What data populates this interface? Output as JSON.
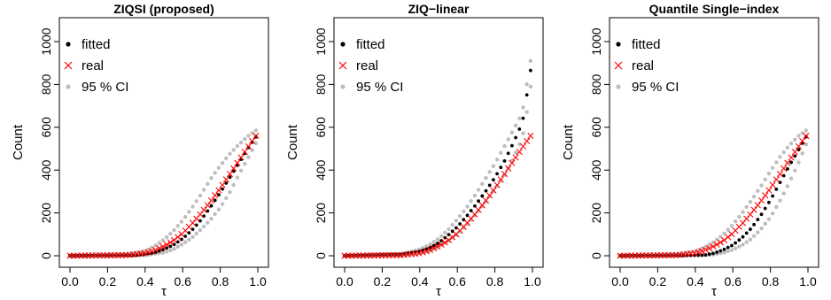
{
  "chart_data": [
    {
      "type": "scatter",
      "title": "ZIQSI (proposed)",
      "xlabel": "τ",
      "ylabel": "Count",
      "xlim": [
        0,
        1
      ],
      "ylim": [
        0,
        1000
      ],
      "xticks": [
        "0.0",
        "0.2",
        "0.4",
        "0.6",
        "0.8",
        "1.0"
      ],
      "yticks": [
        "0",
        "200",
        "400",
        "600",
        "800",
        "1000"
      ],
      "legend": {
        "position": "top-left",
        "entries": [
          {
            "label": "fitted",
            "marker": "dot",
            "color": "#000000"
          },
          {
            "label": "real",
            "marker": "x",
            "color": "#ff0000"
          },
          {
            "label": "95 % CI",
            "marker": "dot",
            "color": "#bebebe"
          }
        ]
      },
      "series": [
        {
          "name": "real",
          "x": [
            0.0,
            0.3,
            0.4,
            0.45,
            0.5,
            0.55,
            0.6,
            0.65,
            0.7,
            0.75,
            0.8,
            0.85,
            0.9,
            0.95,
            0.99
          ],
          "y": [
            0,
            3,
            12,
            25,
            45,
            70,
            105,
            150,
            200,
            255,
            315,
            380,
            445,
            510,
            560
          ]
        },
        {
          "name": "fitted",
          "x": [
            0.0,
            0.35,
            0.45,
            0.5,
            0.55,
            0.6,
            0.65,
            0.7,
            0.75,
            0.8,
            0.85,
            0.9,
            0.95,
            0.99
          ],
          "y": [
            0,
            3,
            15,
            30,
            50,
            80,
            120,
            170,
            230,
            295,
            365,
            435,
            505,
            555
          ]
        },
        {
          "name": "95 % CI upper",
          "x": [
            0.0,
            0.3,
            0.4,
            0.45,
            0.5,
            0.55,
            0.6,
            0.65,
            0.7,
            0.75,
            0.8,
            0.85,
            0.9,
            0.95,
            0.99
          ],
          "y": [
            0,
            5,
            22,
            45,
            75,
            115,
            165,
            225,
            290,
            360,
            420,
            475,
            520,
            560,
            585
          ]
        },
        {
          "name": "95 % CI lower",
          "x": [
            0.0,
            0.4,
            0.5,
            0.55,
            0.6,
            0.65,
            0.7,
            0.75,
            0.8,
            0.85,
            0.9,
            0.95,
            0.99
          ],
          "y": [
            0,
            2,
            15,
            30,
            55,
            85,
            125,
            170,
            225,
            295,
            380,
            460,
            525
          ]
        }
      ]
    },
    {
      "type": "scatter",
      "title": "ZIQ−linear",
      "xlabel": "τ",
      "ylabel": "Count",
      "xlim": [
        0,
        1
      ],
      "ylim": [
        0,
        1000
      ],
      "xticks": [
        "0.0",
        "0.2",
        "0.4",
        "0.6",
        "0.8",
        "1.0"
      ],
      "yticks": [
        "0",
        "200",
        "400",
        "600",
        "800",
        "1000"
      ],
      "legend": {
        "position": "top-left",
        "entries": [
          {
            "label": "fitted",
            "marker": "dot",
            "color": "#000000"
          },
          {
            "label": "real",
            "marker": "x",
            "color": "#ff0000"
          },
          {
            "label": "95 % CI",
            "marker": "dot",
            "color": "#bebebe"
          }
        ]
      },
      "series": [
        {
          "name": "real",
          "x": [
            0.0,
            0.3,
            0.4,
            0.45,
            0.5,
            0.55,
            0.6,
            0.65,
            0.7,
            0.75,
            0.8,
            0.85,
            0.9,
            0.95,
            0.99
          ],
          "y": [
            0,
            3,
            12,
            25,
            45,
            70,
            105,
            150,
            200,
            255,
            315,
            380,
            445,
            510,
            560
          ]
        },
        {
          "name": "fitted",
          "x": [
            0.0,
            0.3,
            0.4,
            0.45,
            0.5,
            0.55,
            0.6,
            0.65,
            0.7,
            0.75,
            0.8,
            0.85,
            0.9,
            0.93,
            0.95,
            0.97,
            0.99
          ],
          "y": [
            0,
            5,
            20,
            35,
            60,
            95,
            135,
            185,
            240,
            300,
            365,
            440,
            530,
            590,
            640,
            750,
            865
          ]
        },
        {
          "name": "95 % CI upper",
          "x": [
            0.0,
            0.3,
            0.4,
            0.45,
            0.5,
            0.55,
            0.6,
            0.65,
            0.7,
            0.75,
            0.8,
            0.85,
            0.9,
            0.93,
            0.95,
            0.97,
            0.99
          ],
          "y": [
            0,
            8,
            30,
            50,
            80,
            120,
            170,
            225,
            290,
            360,
            430,
            510,
            590,
            640,
            690,
            800,
            910
          ]
        },
        {
          "name": "95 % CI lower",
          "x": [
            0.0,
            0.3,
            0.4,
            0.45,
            0.5,
            0.55,
            0.6,
            0.65,
            0.7,
            0.75,
            0.8,
            0.85,
            0.9,
            0.93,
            0.95,
            0.97,
            0.99
          ],
          "y": [
            0,
            2,
            12,
            22,
            40,
            68,
            100,
            145,
            195,
            250,
            310,
            375,
            460,
            520,
            570,
            670,
            790
          ]
        }
      ]
    },
    {
      "type": "scatter",
      "title": "Quantile Single−index",
      "xlabel": "τ",
      "ylabel": "Count",
      "xlim": [
        0,
        1
      ],
      "ylim": [
        0,
        1000
      ],
      "xticks": [
        "0.0",
        "0.2",
        "0.4",
        "0.6",
        "0.8",
        "1.0"
      ],
      "yticks": [
        "0",
        "200",
        "400",
        "600",
        "800",
        "1000"
      ],
      "legend": {
        "position": "top-left",
        "entries": [
          {
            "label": "fitted",
            "marker": "dot",
            "color": "#000000"
          },
          {
            "label": "real",
            "marker": "x",
            "color": "#ff0000"
          },
          {
            "label": "95 % CI",
            "marker": "dot",
            "color": "#bebebe"
          }
        ]
      },
      "series": [
        {
          "name": "real",
          "x": [
            0.0,
            0.3,
            0.4,
            0.45,
            0.5,
            0.55,
            0.6,
            0.65,
            0.7,
            0.75,
            0.8,
            0.85,
            0.9,
            0.95,
            0.99
          ],
          "y": [
            0,
            3,
            12,
            25,
            45,
            70,
            105,
            150,
            200,
            255,
            315,
            380,
            445,
            510,
            560
          ]
        },
        {
          "name": "fitted",
          "x": [
            0.0,
            0.45,
            0.5,
            0.55,
            0.6,
            0.65,
            0.7,
            0.75,
            0.8,
            0.85,
            0.9,
            0.95,
            0.99
          ],
          "y": [
            0,
            3,
            12,
            28,
            50,
            85,
            130,
            190,
            260,
            340,
            420,
            495,
            555
          ]
        },
        {
          "name": "95 % CI upper",
          "x": [
            0.0,
            0.3,
            0.4,
            0.45,
            0.5,
            0.55,
            0.6,
            0.65,
            0.7,
            0.75,
            0.8,
            0.85,
            0.9,
            0.95,
            0.99
          ],
          "y": [
            0,
            5,
            20,
            40,
            65,
            100,
            145,
            200,
            260,
            325,
            395,
            460,
            515,
            560,
            585
          ]
        },
        {
          "name": "95 % CI lower",
          "x": [
            0.0,
            0.45,
            0.5,
            0.55,
            0.6,
            0.65,
            0.7,
            0.75,
            0.8,
            0.85,
            0.9,
            0.95,
            0.99
          ],
          "y": [
            0,
            2,
            6,
            14,
            28,
            50,
            80,
            125,
            180,
            255,
            340,
            435,
            520
          ]
        }
      ]
    }
  ]
}
